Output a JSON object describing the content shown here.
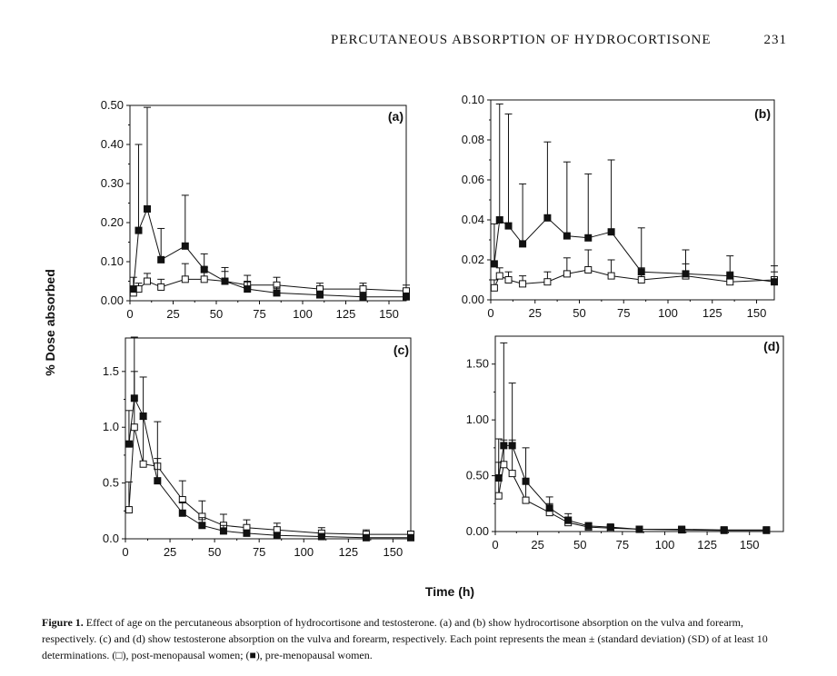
{
  "header": {
    "title": "PERCUTANEOUS ABSORPTION OF HYDROCORTISONE",
    "page_number": "231"
  },
  "figure": {
    "y_axis_title": "% Dose absorbed",
    "x_axis_title": "Time (h)"
  },
  "caption": {
    "label": "Figure 1.",
    "text": "Effect of age on the percutaneous absorption of hydrocortisone and testosterone. (a) and (b) show hydrocortisone absorption on the vulva and forearm, respectively. (c) and (d) show testosterone absorption on the vulva and forearm, respectively. Each point represents the mean ± (standard deviation) (SD) of at least 10 determinations. (□), post-menopausal women; (■), pre-menopausal women."
  },
  "colors": {
    "ink": "#111111",
    "background": "#ffffff"
  },
  "chart_data": [
    {
      "type": "line",
      "panel": "(a)",
      "xlim": [
        0,
        160
      ],
      "ylim": [
        0,
        0.5
      ],
      "xticks": [
        0,
        25,
        50,
        75,
        100,
        125,
        150
      ],
      "xtick_labels": [
        "0",
        "25",
        "50",
        "75",
        "100",
        "125",
        "150"
      ],
      "yticks": [
        0,
        0.1,
        0.2,
        0.3,
        0.4,
        0.5
      ],
      "ytick_labels": [
        "0.00",
        "0.10",
        "0.20",
        "0.30",
        "0.40",
        "0.50"
      ],
      "series": [
        {
          "marker": "open-square",
          "x": [
            2,
            5,
            10,
            18,
            32,
            43,
            55,
            68,
            85,
            110,
            135,
            160
          ],
          "y": [
            0.02,
            0.03,
            0.05,
            0.035,
            0.055,
            0.055,
            0.05,
            0.04,
            0.04,
            0.03,
            0.03,
            0.025
          ],
          "err": [
            0.015,
            0.015,
            0.02,
            0.02,
            0.04,
            0.03,
            0.025,
            0.025,
            0.02,
            0.015,
            0.015,
            0.015
          ]
        },
        {
          "marker": "filled-square",
          "x": [
            2,
            5,
            10,
            18,
            32,
            43,
            55,
            68,
            85,
            110,
            135,
            160
          ],
          "y": [
            0.03,
            0.18,
            0.235,
            0.105,
            0.14,
            0.08,
            0.05,
            0.03,
            0.02,
            0.015,
            0.01,
            0.01
          ],
          "err": [
            0.03,
            0.22,
            0.26,
            0.08,
            0.13,
            0.04,
            0.035,
            0.02,
            0.015,
            0.01,
            0.01,
            0.01
          ]
        }
      ]
    },
    {
      "type": "line",
      "panel": "(b)",
      "xlim": [
        0,
        160
      ],
      "ylim": [
        0,
        0.1
      ],
      "xticks": [
        0,
        25,
        50,
        75,
        100,
        125,
        150
      ],
      "xtick_labels": [
        "0",
        "25",
        "50",
        "75",
        "100",
        "125",
        "150"
      ],
      "yticks": [
        0,
        0.02,
        0.04,
        0.06,
        0.08,
        0.1
      ],
      "ytick_labels": [
        "0.00",
        "0.02",
        "0.04",
        "0.06",
        "0.08",
        "0.10"
      ],
      "series": [
        {
          "marker": "open-square",
          "x": [
            2,
            5,
            10,
            18,
            32,
            43,
            55,
            68,
            85,
            110,
            135,
            160
          ],
          "y": [
            0.006,
            0.012,
            0.01,
            0.008,
            0.009,
            0.013,
            0.015,
            0.012,
            0.01,
            0.012,
            0.009,
            0.01
          ],
          "err": [
            0.004,
            0.004,
            0.004,
            0.004,
            0.005,
            0.008,
            0.01,
            0.008,
            0.006,
            0.006,
            0.005,
            0.004
          ]
        },
        {
          "marker": "filled-square",
          "x": [
            2,
            5,
            10,
            18,
            32,
            43,
            55,
            68,
            85,
            110,
            135,
            160
          ],
          "y": [
            0.018,
            0.04,
            0.037,
            0.028,
            0.041,
            0.032,
            0.031,
            0.034,
            0.014,
            0.013,
            0.012,
            0.009
          ],
          "err": [
            0.02,
            0.058,
            0.056,
            0.03,
            0.038,
            0.037,
            0.032,
            0.036,
            0.022,
            0.012,
            0.01,
            0.008
          ]
        }
      ]
    },
    {
      "type": "line",
      "panel": "(c)",
      "xlim": [
        0,
        160
      ],
      "ylim": [
        0,
        1.8
      ],
      "xticks": [
        0,
        25,
        50,
        75,
        100,
        125,
        150
      ],
      "xtick_labels": [
        "0",
        "25",
        "50",
        "75",
        "100",
        "125",
        "150"
      ],
      "yticks": [
        0,
        0.5,
        1.0,
        1.5
      ],
      "ytick_labels": [
        "0.0",
        "0.5",
        "1.0",
        "1.5"
      ],
      "series": [
        {
          "marker": "open-square",
          "x": [
            2,
            5,
            10,
            18,
            32,
            43,
            55,
            68,
            85,
            110,
            135,
            160
          ],
          "y": [
            0.26,
            1.0,
            0.67,
            0.65,
            0.35,
            0.2,
            0.12,
            0.1,
            0.08,
            0.05,
            0.04,
            0.04
          ],
          "err": [
            0.25,
            0.5,
            0.4,
            0.4,
            0.17,
            0.14,
            0.1,
            0.07,
            0.06,
            0.05,
            0.04,
            0.03
          ]
        },
        {
          "marker": "filled-square",
          "x": [
            2,
            5,
            10,
            18,
            32,
            43,
            55,
            68,
            85,
            110,
            135,
            160
          ],
          "y": [
            0.85,
            1.26,
            1.1,
            0.52,
            0.23,
            0.12,
            0.07,
            0.05,
            0.03,
            0.02,
            0.01,
            0.01
          ],
          "err": [
            0.3,
            0.55,
            0.35,
            0.2,
            0.1,
            0.07,
            0.05,
            0.03,
            0.02,
            0.015,
            0.01,
            0.01
          ]
        }
      ]
    },
    {
      "type": "line",
      "panel": "(d)",
      "xlim": [
        0,
        170
      ],
      "ylim": [
        0,
        1.75
      ],
      "xticks": [
        0,
        25,
        50,
        75,
        100,
        125,
        150
      ],
      "xtick_labels": [
        "0",
        "25",
        "50",
        "75",
        "100",
        "125",
        "150"
      ],
      "yticks": [
        0,
        0.5,
        1.0,
        1.5
      ],
      "ytick_labels": [
        "0.00",
        "0.50",
        "1.00",
        "1.50"
      ],
      "series": [
        {
          "marker": "open-square",
          "x": [
            2,
            5,
            10,
            18,
            32,
            43,
            55,
            68,
            85,
            110,
            135,
            160
          ],
          "y": [
            0.32,
            0.6,
            0.52,
            0.28,
            0.17,
            0.08,
            0.04,
            0.03,
            0.02,
            0.015,
            0.01,
            0.01
          ],
          "err": [
            0.3,
            0.22,
            0.3,
            0.15,
            0.08,
            0.05,
            0.03,
            0.02,
            0.015,
            0.01,
            0.008,
            0.006
          ]
        },
        {
          "marker": "filled-square",
          "x": [
            2,
            5,
            10,
            18,
            32,
            43,
            55,
            68,
            85,
            110,
            135,
            160
          ],
          "y": [
            0.48,
            0.77,
            0.77,
            0.45,
            0.21,
            0.1,
            0.05,
            0.04,
            0.02,
            0.02,
            0.015,
            0.015
          ],
          "err": [
            0.35,
            0.92,
            0.56,
            0.3,
            0.1,
            0.06,
            0.03,
            0.02,
            0.015,
            0.012,
            0.01,
            0.01
          ]
        }
      ]
    }
  ]
}
